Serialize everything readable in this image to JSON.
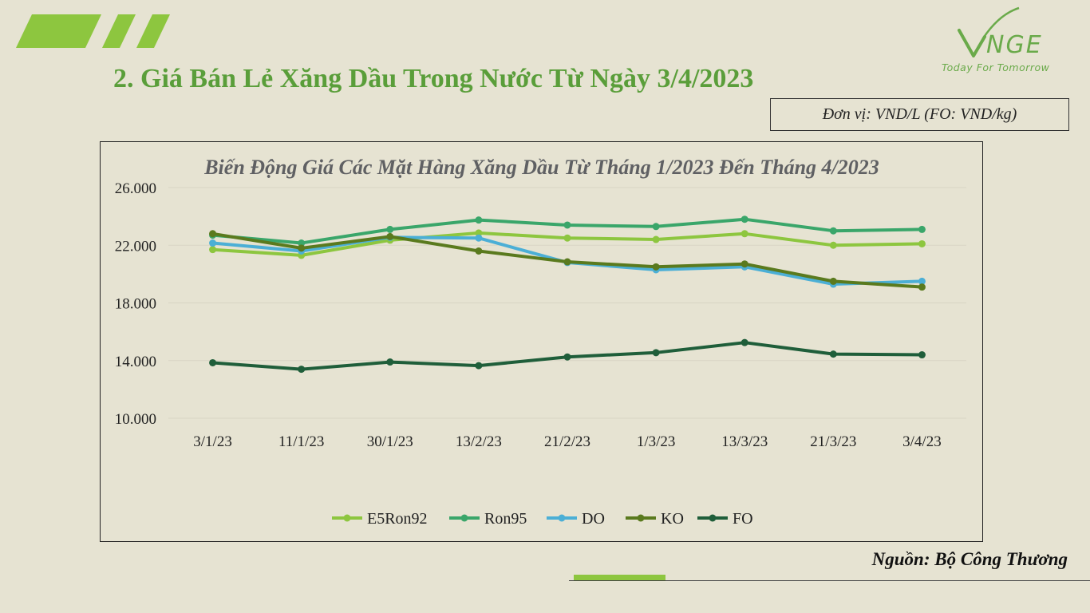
{
  "slide": {
    "title": "2. Giá Bán Lẻ Xăng Dầu Trong Nước Từ Ngày 3/4/2023",
    "unit": "Đơn vị: VND/L (FO: VND/kg)",
    "source": "Nguồn: Bộ Công Thương",
    "logo_text": "VNGE",
    "logo_tagline": "Today For Tomorrow",
    "accent_color": "#8dc63f",
    "title_color": "#5a9e3a"
  },
  "chart_data": {
    "type": "line",
    "title": "Biến Động Giá Các Mặt Hàng Xăng Dầu Từ Tháng 1/2023 Đến Tháng  4/2023",
    "xlabel": "",
    "ylabel": "",
    "categories": [
      "3/1/23",
      "11/1/23",
      "30/1/23",
      "13/2/23",
      "21/2/23",
      "1/3/23",
      "13/3/23",
      "21/3/23",
      "3/4/23"
    ],
    "ylim": [
      10000,
      26000
    ],
    "yticks": [
      10000,
      14000,
      18000,
      22000,
      26000
    ],
    "ytick_labels": [
      "10.000",
      "14.000",
      "18.000",
      "22.000",
      "26.000"
    ],
    "grid": true,
    "legend_position": "bottom",
    "series": [
      {
        "name": "E5Ron92",
        "color": "#8dc63f",
        "values": [
          21700,
          21300,
          22350,
          22850,
          22500,
          22400,
          22800,
          22000,
          22100
        ]
      },
      {
        "name": "Ron95",
        "color": "#3aa66a",
        "values": [
          22700,
          22150,
          23100,
          23750,
          23400,
          23300,
          23800,
          23000,
          23100
        ]
      },
      {
        "name": "DO",
        "color": "#4bafd6",
        "values": [
          22150,
          21600,
          22550,
          22500,
          20800,
          20300,
          20500,
          19300,
          19500
        ]
      },
      {
        "name": "KO",
        "color": "#5a7a1e",
        "values": [
          22800,
          21800,
          22600,
          21600,
          20850,
          20500,
          20700,
          19500,
          19100
        ]
      },
      {
        "name": "FO",
        "color": "#1f5e3a",
        "values": [
          13850,
          13400,
          13900,
          13650,
          14250,
          14550,
          15250,
          14450,
          14400
        ]
      }
    ]
  }
}
